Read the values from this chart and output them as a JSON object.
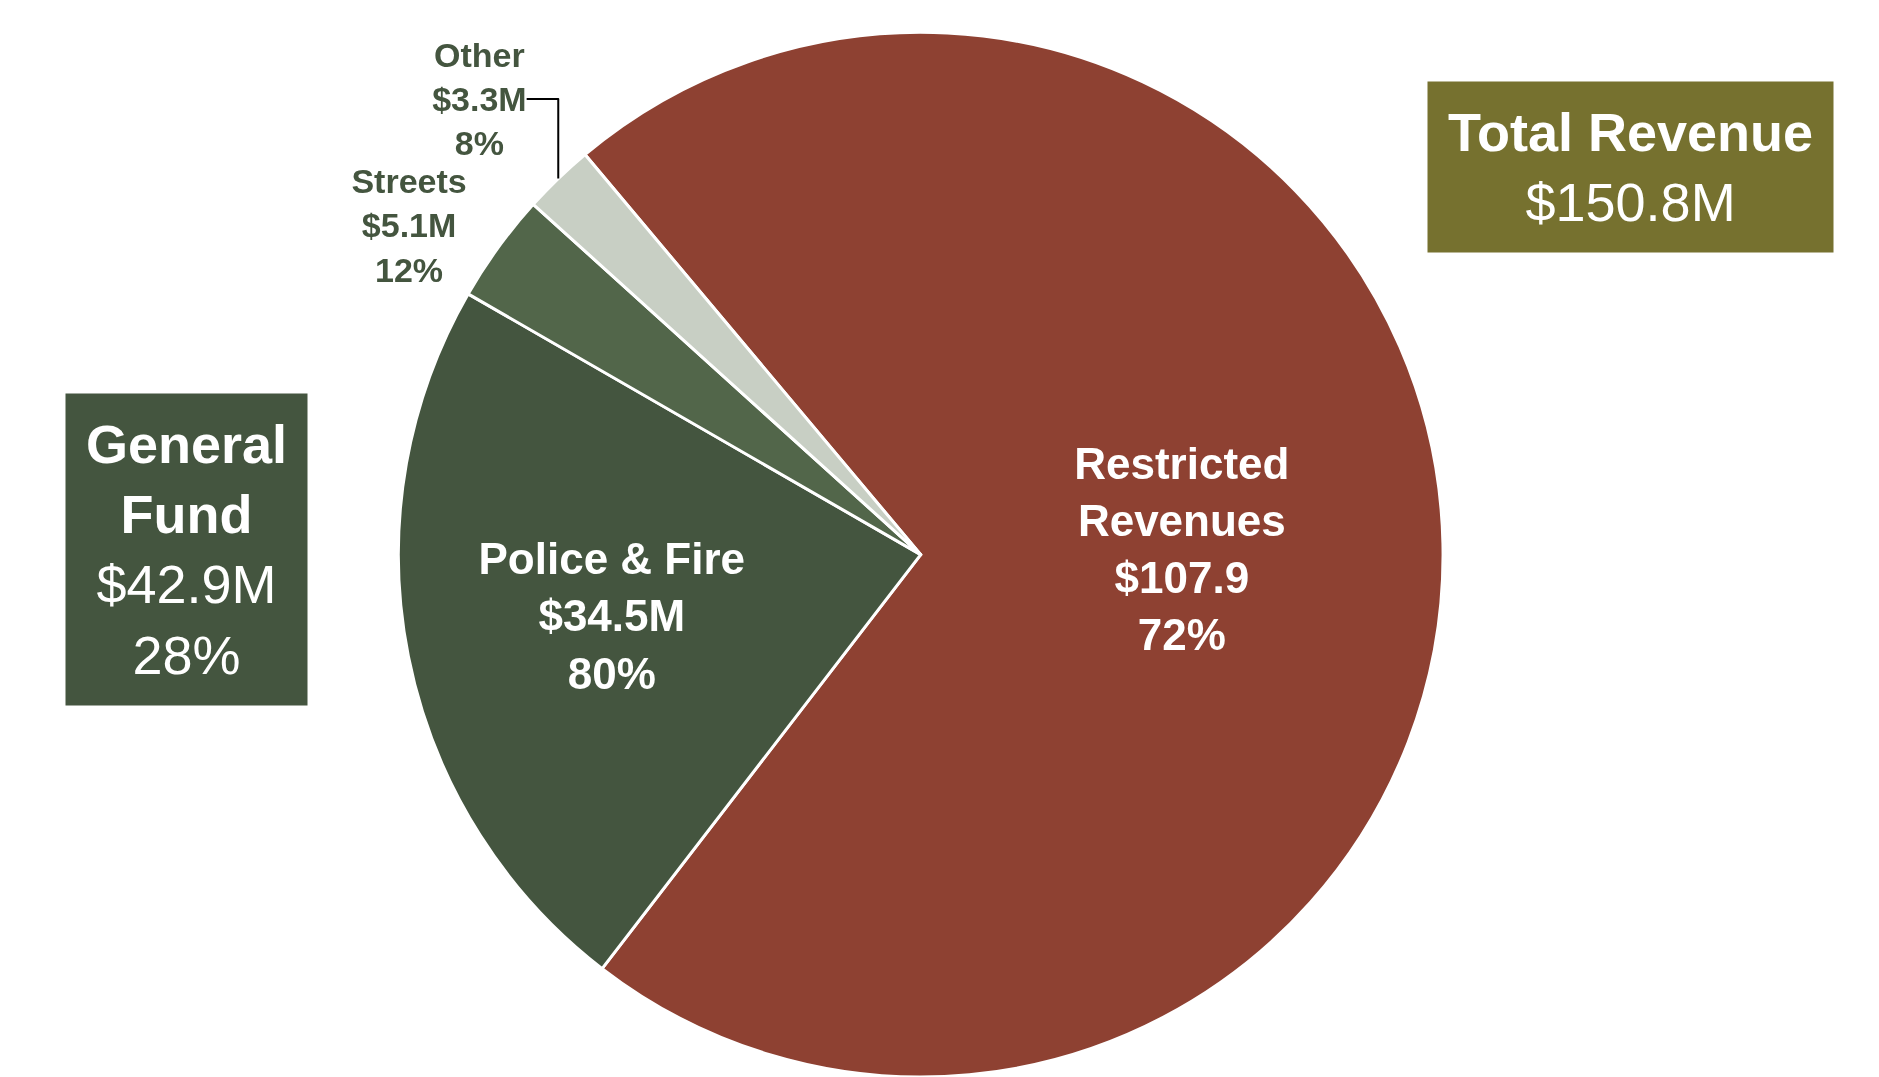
{
  "chart_data": {
    "type": "pie",
    "categories": [
      "Restricted\nRevenues",
      "Police & Fire",
      "Streets",
      "Other"
    ],
    "values": [
      107.9,
      34.5,
      5.1,
      3.3
    ],
    "colors": [
      "#8e4132",
      "#44553f",
      "#52664a",
      "#c8cfc4"
    ],
    "value_labels": [
      "$107.9",
      "$34.5M",
      "$5.1M",
      "$3.3M"
    ],
    "annotations": [
      "General\nFund\n$42.9M\n28%",
      "Total Revenue\n$150.8M",
      {
        "text": "72%",
        "x": "Restricted\nRevenues"
      },
      {
        "text": "80%",
        "x": "Police & Fire"
      },
      {
        "text": "12%",
        "x": "Streets"
      },
      {
        "text": "8%",
        "x": "Other"
      }
    ],
    "legend": false
  }
}
